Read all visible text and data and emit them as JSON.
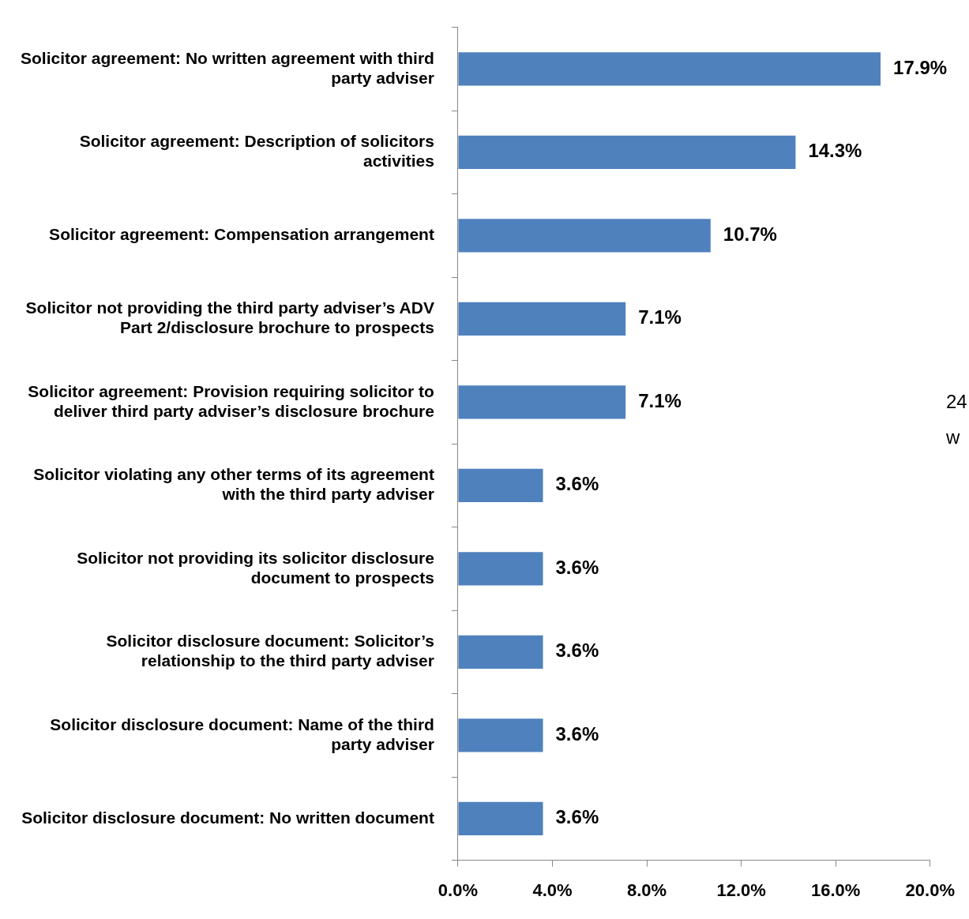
{
  "chart_data": {
    "type": "bar",
    "orientation": "horizontal",
    "categories": [
      "Solicitor agreement: No written agreement with third party adviser",
      "Solicitor agreement: Description of solicitors activities",
      "Solicitor agreement: Compensation arrangement",
      "Solicitor not providing the third party adviser’s ADV Part 2/disclosure brochure to prospects",
      "Solicitor agreement: Provision requiring solicitor to deliver third party adviser’s disclosure brochure",
      "Solicitor violating any other terms of its agreement with the third party adviser",
      "Solicitor not providing its solicitor disclosure document to prospects",
      "Solicitor disclosure document: Solicitor’s relationship to the third party adviser",
      "Solicitor disclosure document: Name of the third party adviser",
      "Solicitor disclosure document: No written document"
    ],
    "values": [
      17.9,
      14.3,
      10.7,
      7.1,
      7.1,
      3.6,
      3.6,
      3.6,
      3.6,
      3.6
    ],
    "value_labels": [
      "17.9%",
      "14.3%",
      "10.7%",
      "7.1%",
      "7.1%",
      "3.6%",
      "3.6%",
      "3.6%",
      "3.6%",
      "3.6%"
    ],
    "color": "#4f81bd",
    "xlim": [
      0,
      20
    ],
    "xticks": [
      {
        "value": 0,
        "label": "0.0%"
      },
      {
        "value": 4,
        "label": "4.0%"
      },
      {
        "value": 8,
        "label": "8.0%"
      },
      {
        "value": 12,
        "label": "12.0%"
      },
      {
        "value": 16,
        "label": "16.0%"
      },
      {
        "value": 20,
        "label": "20.0%"
      }
    ],
    "grid": false,
    "legend": false,
    "annotations": [
      "24",
      "w"
    ]
  }
}
